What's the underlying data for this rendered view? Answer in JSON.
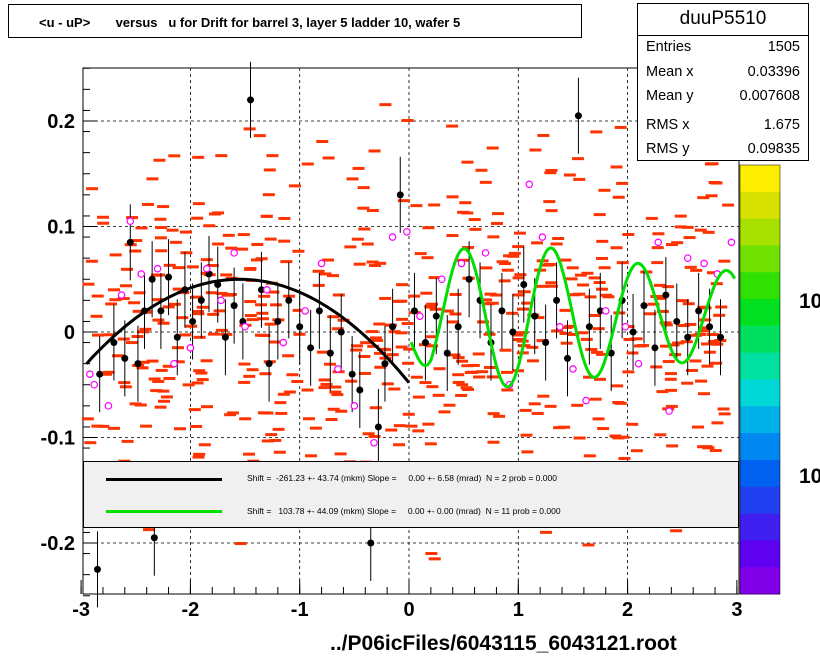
{
  "title": "<u - uP>       versus   u for Drift for barrel 3, layer 5 ladder 10, wafer 5",
  "stats": {
    "name": "duuP5510",
    "rows": [
      {
        "k": "Entries",
        "v": "1505"
      },
      {
        "k": "Mean x",
        "v": "0.03396"
      },
      {
        "k": "Mean y",
        "v": "0.007608"
      },
      {
        "k": "RMS x",
        "v": "1.675"
      },
      {
        "k": "RMS y",
        "v": "0.09835"
      }
    ]
  },
  "legend": [
    {
      "color": "#000000",
      "text": "Shift =  -261.23 +- 43.74 (mkm) Slope =     0.00 +- 6.58 (mrad)  N = 2 prob = 0.000"
    },
    {
      "color": "#00e000",
      "text": "Shift =   103.78 +- 44.09 (mkm) Slope =     0.00 +- 0.00 (mrad)  N = 11 prob = 0.000"
    }
  ],
  "footer": "../P06icFiles/6043115_6043121.root",
  "z_labels": [
    "10",
    "10"
  ],
  "colors": {
    "hist": "#ff3300",
    "profile": "#000000",
    "open_marker": "#ff00ff",
    "fit1": "#000000",
    "fit2": "#00dd00"
  },
  "chart_data": {
    "type": "scatter",
    "xlim": [
      -3,
      3
    ],
    "ylim": [
      -0.25,
      0.25
    ],
    "x_ticks": [
      -3,
      -2,
      -1,
      0,
      1,
      2,
      3
    ],
    "y_ticks": [
      -0.2,
      -0.1,
      0,
      0.1,
      0.2
    ],
    "x_tick_labels": [
      "-3",
      "-2",
      "-1",
      "0",
      "1",
      "2",
      "3"
    ],
    "y_tick_labels": [
      "-0.2",
      "-0.1",
      "0",
      "0.1",
      "0.2"
    ],
    "grid": true,
    "profile_points": [
      {
        "x": -2.85,
        "y": -0.225
      },
      {
        "x": -2.33,
        "y": -0.195
      },
      {
        "x": -2.83,
        "y": -0.04
      },
      {
        "x": -2.7,
        "y": -0.01
      },
      {
        "x": -2.6,
        "y": -0.025
      },
      {
        "x": -2.55,
        "y": 0.085
      },
      {
        "x": -2.48,
        "y": -0.03
      },
      {
        "x": -2.42,
        "y": 0.02
      },
      {
        "x": -2.35,
        "y": 0.05
      },
      {
        "x": -2.27,
        "y": 0.02
      },
      {
        "x": -2.2,
        "y": 0.052
      },
      {
        "x": -2.12,
        "y": -0.005
      },
      {
        "x": -2.05,
        "y": 0.04
      },
      {
        "x": -1.98,
        "y": 0.01
      },
      {
        "x": -1.9,
        "y": 0.03
      },
      {
        "x": -1.83,
        "y": 0.055
      },
      {
        "x": -1.75,
        "y": 0.045
      },
      {
        "x": -1.68,
        "y": -0.005
      },
      {
        "x": -1.6,
        "y": 0.025
      },
      {
        "x": -1.52,
        "y": 0.01
      },
      {
        "x": -1.45,
        "y": 0.22
      },
      {
        "x": -1.35,
        "y": 0.04
      },
      {
        "x": -1.28,
        "y": -0.03
      },
      {
        "x": -1.2,
        "y": 0.01
      },
      {
        "x": -1.1,
        "y": 0.03
      },
      {
        "x": -1.0,
        "y": 0.005
      },
      {
        "x": -0.9,
        "y": -0.015
      },
      {
        "x": -0.82,
        "y": 0.02
      },
      {
        "x": -0.72,
        "y": -0.02
      },
      {
        "x": -0.62,
        "y": 0.0
      },
      {
        "x": -0.52,
        "y": -0.04
      },
      {
        "x": -0.45,
        "y": -0.055
      },
      {
        "x": -0.35,
        "y": -0.2
      },
      {
        "x": -0.28,
        "y": -0.09
      },
      {
        "x": -0.22,
        "y": -0.03
      },
      {
        "x": -0.15,
        "y": 0.005
      },
      {
        "x": -0.08,
        "y": 0.13
      },
      {
        "x": 0.05,
        "y": 0.02
      },
      {
        "x": 0.15,
        "y": -0.01
      },
      {
        "x": 0.25,
        "y": 0.015
      },
      {
        "x": 0.35,
        "y": -0.02
      },
      {
        "x": 0.45,
        "y": 0.005
      },
      {
        "x": 0.55,
        "y": 0.05
      },
      {
        "x": 0.65,
        "y": 0.03
      },
      {
        "x": 0.75,
        "y": -0.01
      },
      {
        "x": 0.85,
        "y": 0.02
      },
      {
        "x": 0.95,
        "y": 0.0
      },
      {
        "x": 1.05,
        "y": 0.045
      },
      {
        "x": 1.15,
        "y": 0.015
      },
      {
        "x": 1.25,
        "y": -0.01
      },
      {
        "x": 1.35,
        "y": 0.03
      },
      {
        "x": 1.45,
        "y": -0.025
      },
      {
        "x": 1.55,
        "y": 0.205
      },
      {
        "x": 1.65,
        "y": 0.005
      },
      {
        "x": 1.75,
        "y": 0.02
      },
      {
        "x": 1.85,
        "y": -0.02
      },
      {
        "x": 1.95,
        "y": 0.03
      },
      {
        "x": 2.05,
        "y": 0.0
      },
      {
        "x": 2.15,
        "y": 0.025
      },
      {
        "x": 2.25,
        "y": -0.015
      },
      {
        "x": 2.35,
        "y": 0.035
      },
      {
        "x": 2.45,
        "y": 0.01
      },
      {
        "x": 2.55,
        "y": -0.005
      },
      {
        "x": 2.65,
        "y": 0.02
      },
      {
        "x": 2.75,
        "y": 0.005
      },
      {
        "x": 2.85,
        "y": -0.005
      }
    ],
    "open_points": [
      {
        "x": -2.92,
        "y": -0.04
      },
      {
        "x": -2.88,
        "y": -0.05
      },
      {
        "x": -2.75,
        "y": -0.07
      },
      {
        "x": -2.63,
        "y": 0.035
      },
      {
        "x": -2.55,
        "y": 0.105
      },
      {
        "x": -2.45,
        "y": 0.055
      },
      {
        "x": -2.3,
        "y": 0.06
      },
      {
        "x": -2.15,
        "y": -0.03
      },
      {
        "x": -2.0,
        "y": -0.015
      },
      {
        "x": -1.85,
        "y": 0.06
      },
      {
        "x": -1.72,
        "y": 0.03
      },
      {
        "x": -1.6,
        "y": 0.075
      },
      {
        "x": -1.5,
        "y": 0.005
      },
      {
        "x": -1.3,
        "y": 0.04
      },
      {
        "x": -1.15,
        "y": -0.01
      },
      {
        "x": -0.95,
        "y": 0.02
      },
      {
        "x": -0.8,
        "y": 0.065
      },
      {
        "x": -0.65,
        "y": -0.035
      },
      {
        "x": -0.5,
        "y": -0.07
      },
      {
        "x": -0.32,
        "y": -0.105
      },
      {
        "x": -0.15,
        "y": 0.09
      },
      {
        "x": -0.02,
        "y": 0.095
      },
      {
        "x": 0.1,
        "y": 0.015
      },
      {
        "x": 0.3,
        "y": 0.05
      },
      {
        "x": 0.48,
        "y": 0.065
      },
      {
        "x": 0.7,
        "y": 0.075
      },
      {
        "x": 0.92,
        "y": -0.05
      },
      {
        "x": 1.1,
        "y": 0.14
      },
      {
        "x": 1.22,
        "y": 0.09
      },
      {
        "x": 1.38,
        "y": 0.005
      },
      {
        "x": 1.5,
        "y": -0.035
      },
      {
        "x": 1.62,
        "y": -0.065
      },
      {
        "x": 1.8,
        "y": 0.02
      },
      {
        "x": 1.98,
        "y": 0.005
      },
      {
        "x": 2.1,
        "y": -0.03
      },
      {
        "x": 2.28,
        "y": 0.085
      },
      {
        "x": 2.38,
        "y": -0.075
      },
      {
        "x": 2.55,
        "y": 0.07
      },
      {
        "x": 2.7,
        "y": 0.065
      },
      {
        "x": 2.82,
        "y": 0.055
      },
      {
        "x": 2.95,
        "y": 0.085
      }
    ]
  }
}
